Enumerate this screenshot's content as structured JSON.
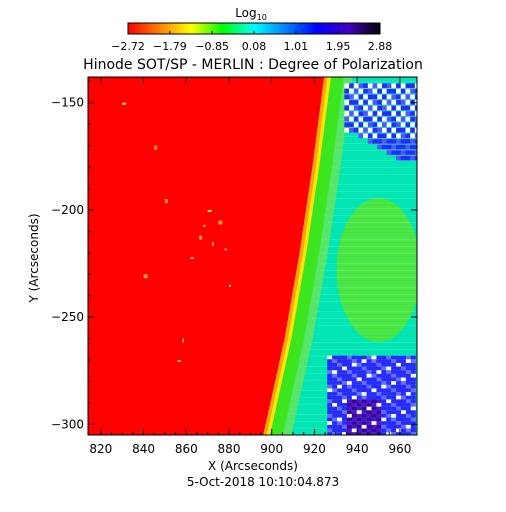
{
  "chart_data": {
    "type": "heatmap",
    "title": "Hinode SOT/SP - MERLIN : Degree of Polarization",
    "xlabel": "X (Arcseconds)",
    "ylabel": "Y (Arcseconds)",
    "footer": "5-Oct-2018 10:10:04.873",
    "xlim": [
      814,
      968
    ],
    "ylim": [
      -305,
      -138
    ],
    "x_ticks": [
      820,
      840,
      860,
      880,
      900,
      920,
      940,
      960
    ],
    "y_ticks": [
      -300,
      -250,
      -200,
      -150
    ],
    "x_tick_labels": [
      "820",
      "840",
      "860",
      "880",
      "900",
      "920",
      "940",
      "960"
    ],
    "y_tick_labels": [
      "-300",
      "-250",
      "-200",
      "-150"
    ],
    "colorbar": {
      "label_base": "Log",
      "label_sub": "10",
      "range": [
        -2.72,
        2.88
      ],
      "ticks": [
        -2.72,
        -1.79,
        -0.85,
        0.08,
        1.01,
        1.95,
        2.88
      ],
      "tick_labels": [
        "-2.72",
        "-1.79",
        "-0.85",
        "0.08",
        "1.01",
        "1.95",
        "2.88"
      ],
      "colormap": [
        "#ff0000",
        "#ff8000",
        "#ffff00",
        "#00ff00",
        "#00ffff",
        "#0080ff",
        "#0000ff",
        "#4000c0",
        "#000000"
      ]
    },
    "regions": [
      {
        "name": "disk",
        "value": -2.72,
        "color": "#ff0000"
      },
      {
        "name": "limb-edge",
        "value": -1.2,
        "color": "#ffa500"
      },
      {
        "name": "limb-band-green",
        "value": 0.3,
        "color": "#3ce61e"
      },
      {
        "name": "off-limb-cyan",
        "value": 1.0,
        "color": "#00e6b4"
      },
      {
        "name": "off-limb-green-patch",
        "value": 0.5,
        "color": "#5ae628"
      },
      {
        "name": "noise-blue",
        "value": 2.2,
        "color": "#2828ff"
      },
      {
        "name": "noise-purple",
        "value": 2.6,
        "color": "#3c00a0"
      }
    ],
    "limb": [
      {
        "y": -138,
        "x": 924.5
      },
      {
        "y": -180,
        "x": 919
      },
      {
        "y": -220,
        "x": 913
      },
      {
        "y": -260,
        "x": 906
      },
      {
        "y": -305,
        "x": 896
      }
    ],
    "limb_band": {
      "orange_width": 1.6,
      "yellow_width": 1.6,
      "green_width": 6
    }
  }
}
